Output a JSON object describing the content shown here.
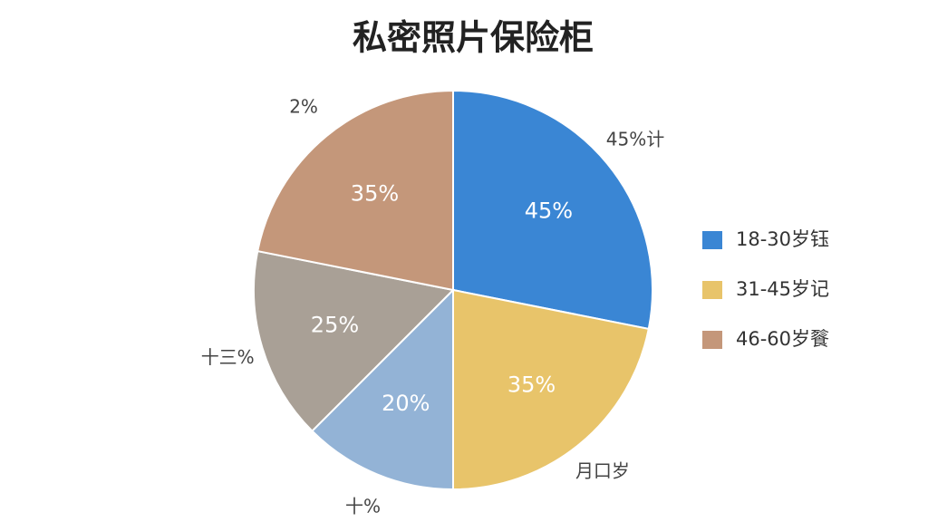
{
  "chart_data": {
    "type": "pie",
    "title": "私密照片保险柜",
    "categories": [
      "18-30岁钰",
      "31-45岁记",
      null,
      null,
      "46-60岁餮"
    ],
    "values": [
      45,
      35,
      20,
      25,
      35
    ],
    "value_labels": [
      "45%",
      "35%",
      "20%",
      "25%",
      "35%"
    ],
    "outer_labels": [
      "45%计",
      "月口岁",
      "十%",
      "十三%",
      "2%"
    ],
    "colors": [
      "#3a86d4",
      "#e8c46a",
      "#93b3d6",
      "#a9a096",
      "#c4977a"
    ]
  }
}
